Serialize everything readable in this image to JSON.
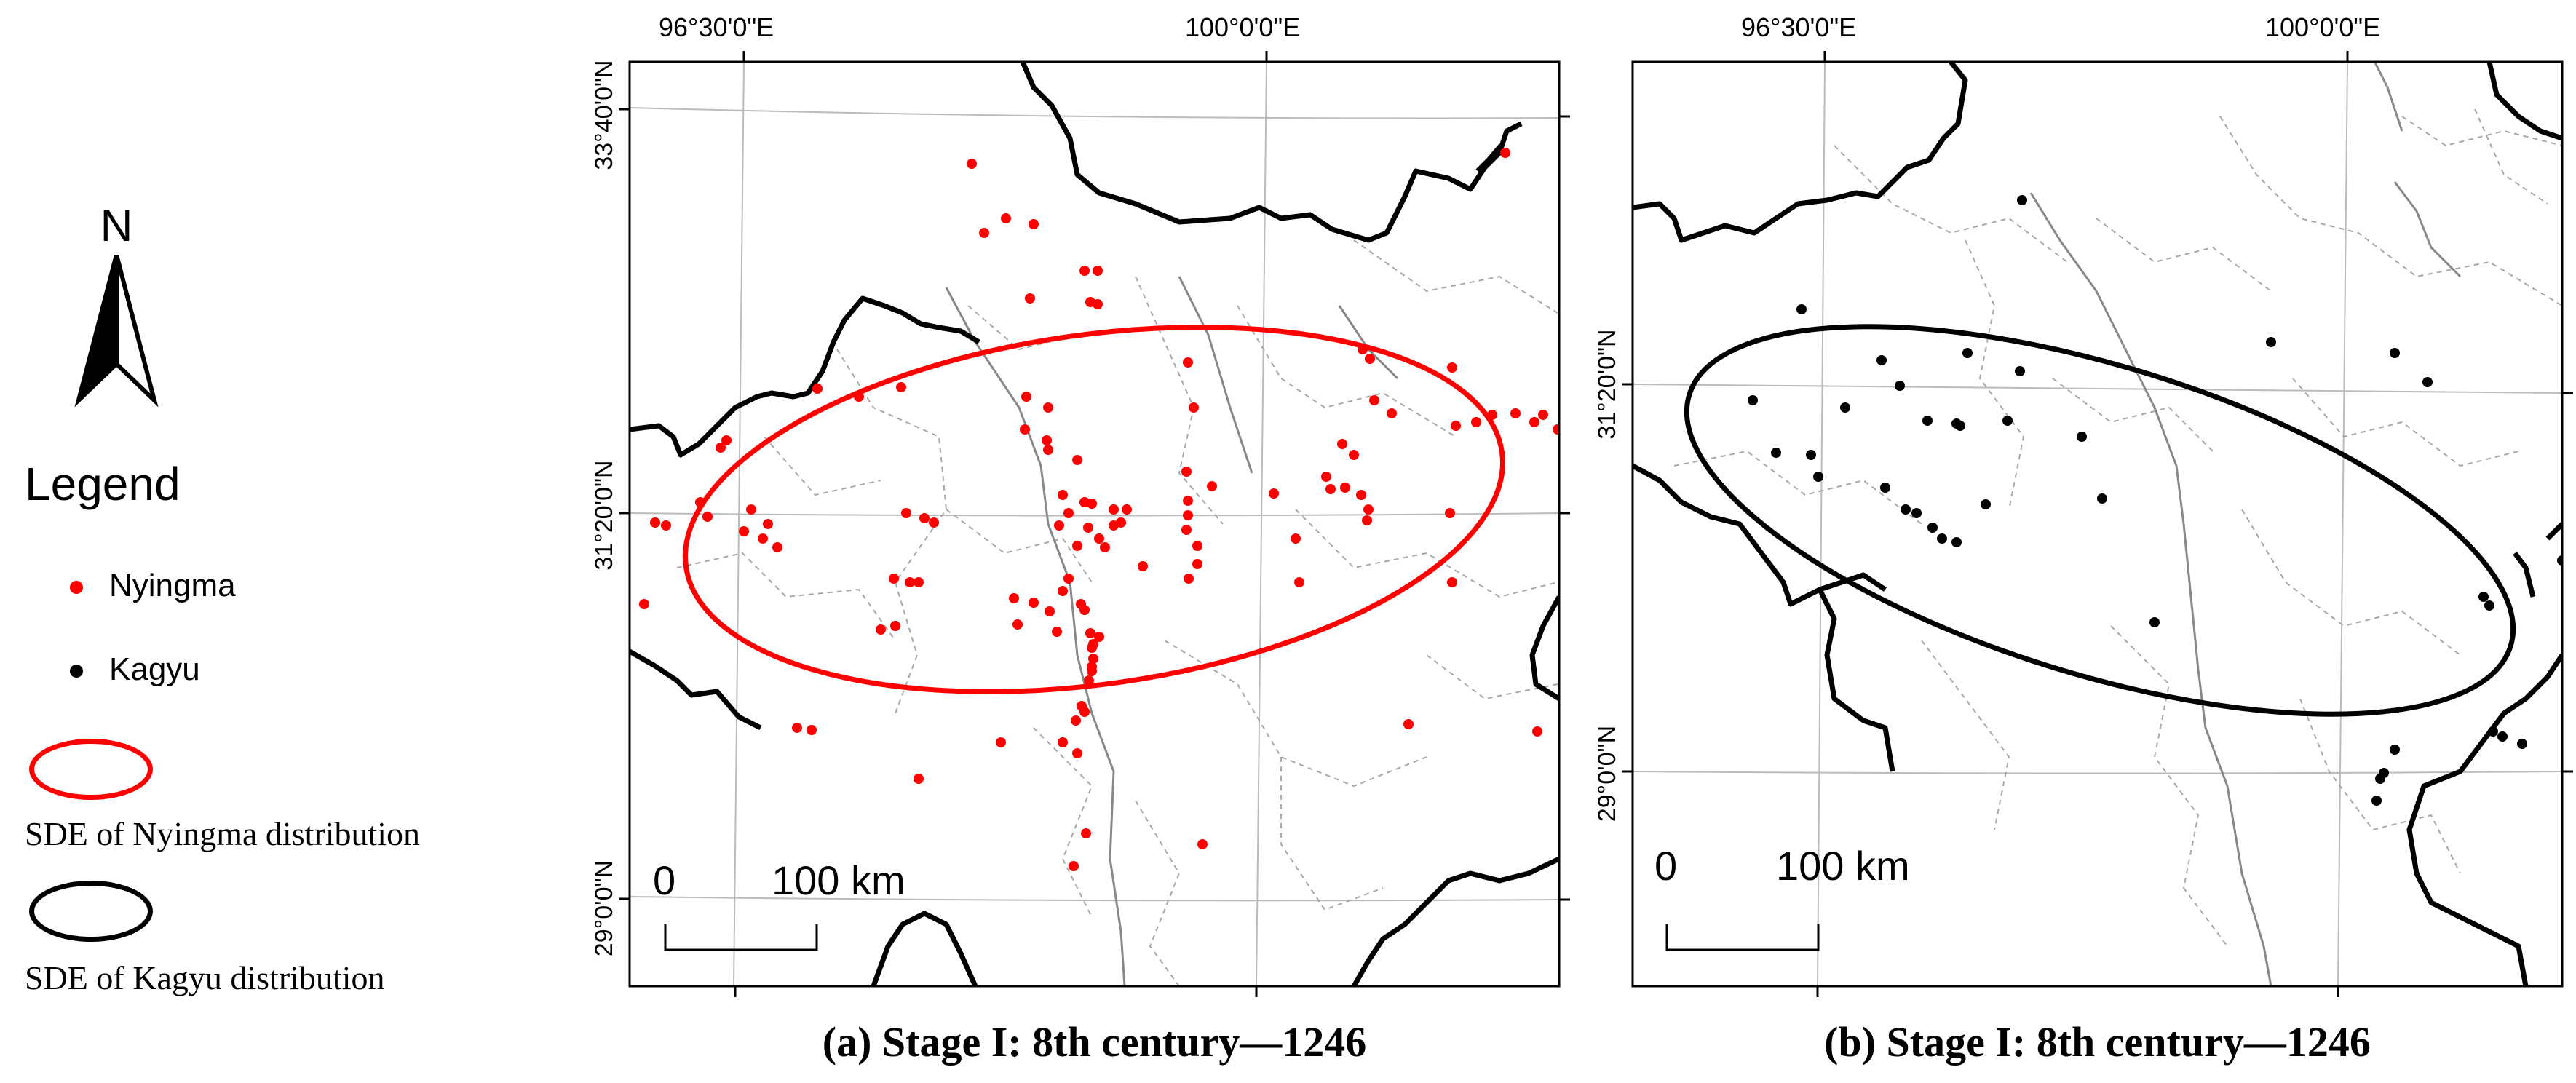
{
  "north_arrow": {
    "letter": "N"
  },
  "legend": {
    "title": "Legend",
    "nyingma_label": "Nyingma",
    "kagyu_label": "Kagyu",
    "sde_nyingma_label": "SDE of Nyingma distribution",
    "sde_kagyu_label": "SDE of Kagyu distribution"
  },
  "colors": {
    "nyingma": "#ff0000",
    "kagyu": "#000000",
    "border": "#000000",
    "river": "#888888",
    "grid": "#bbbbbb"
  },
  "scale_bar": {
    "zero": "0",
    "distance": "100 km"
  },
  "panel_a": {
    "caption": "(a) Stage I: 8th century—1246",
    "lon_labels": [
      "96°30'0\"E",
      "100°0'0\"E"
    ],
    "lat_labels": [
      "33°40'0\"N",
      "31°20'0\"N",
      "29°0'0\"N"
    ]
  },
  "panel_b": {
    "caption": "(b) Stage I: 8th century—1246",
    "lon_labels": [
      "96°30'0\"E",
      "100°0'0\"E"
    ],
    "lat_labels": [
      "31°20'0\"N",
      "29°0'0\"N"
    ]
  }
}
